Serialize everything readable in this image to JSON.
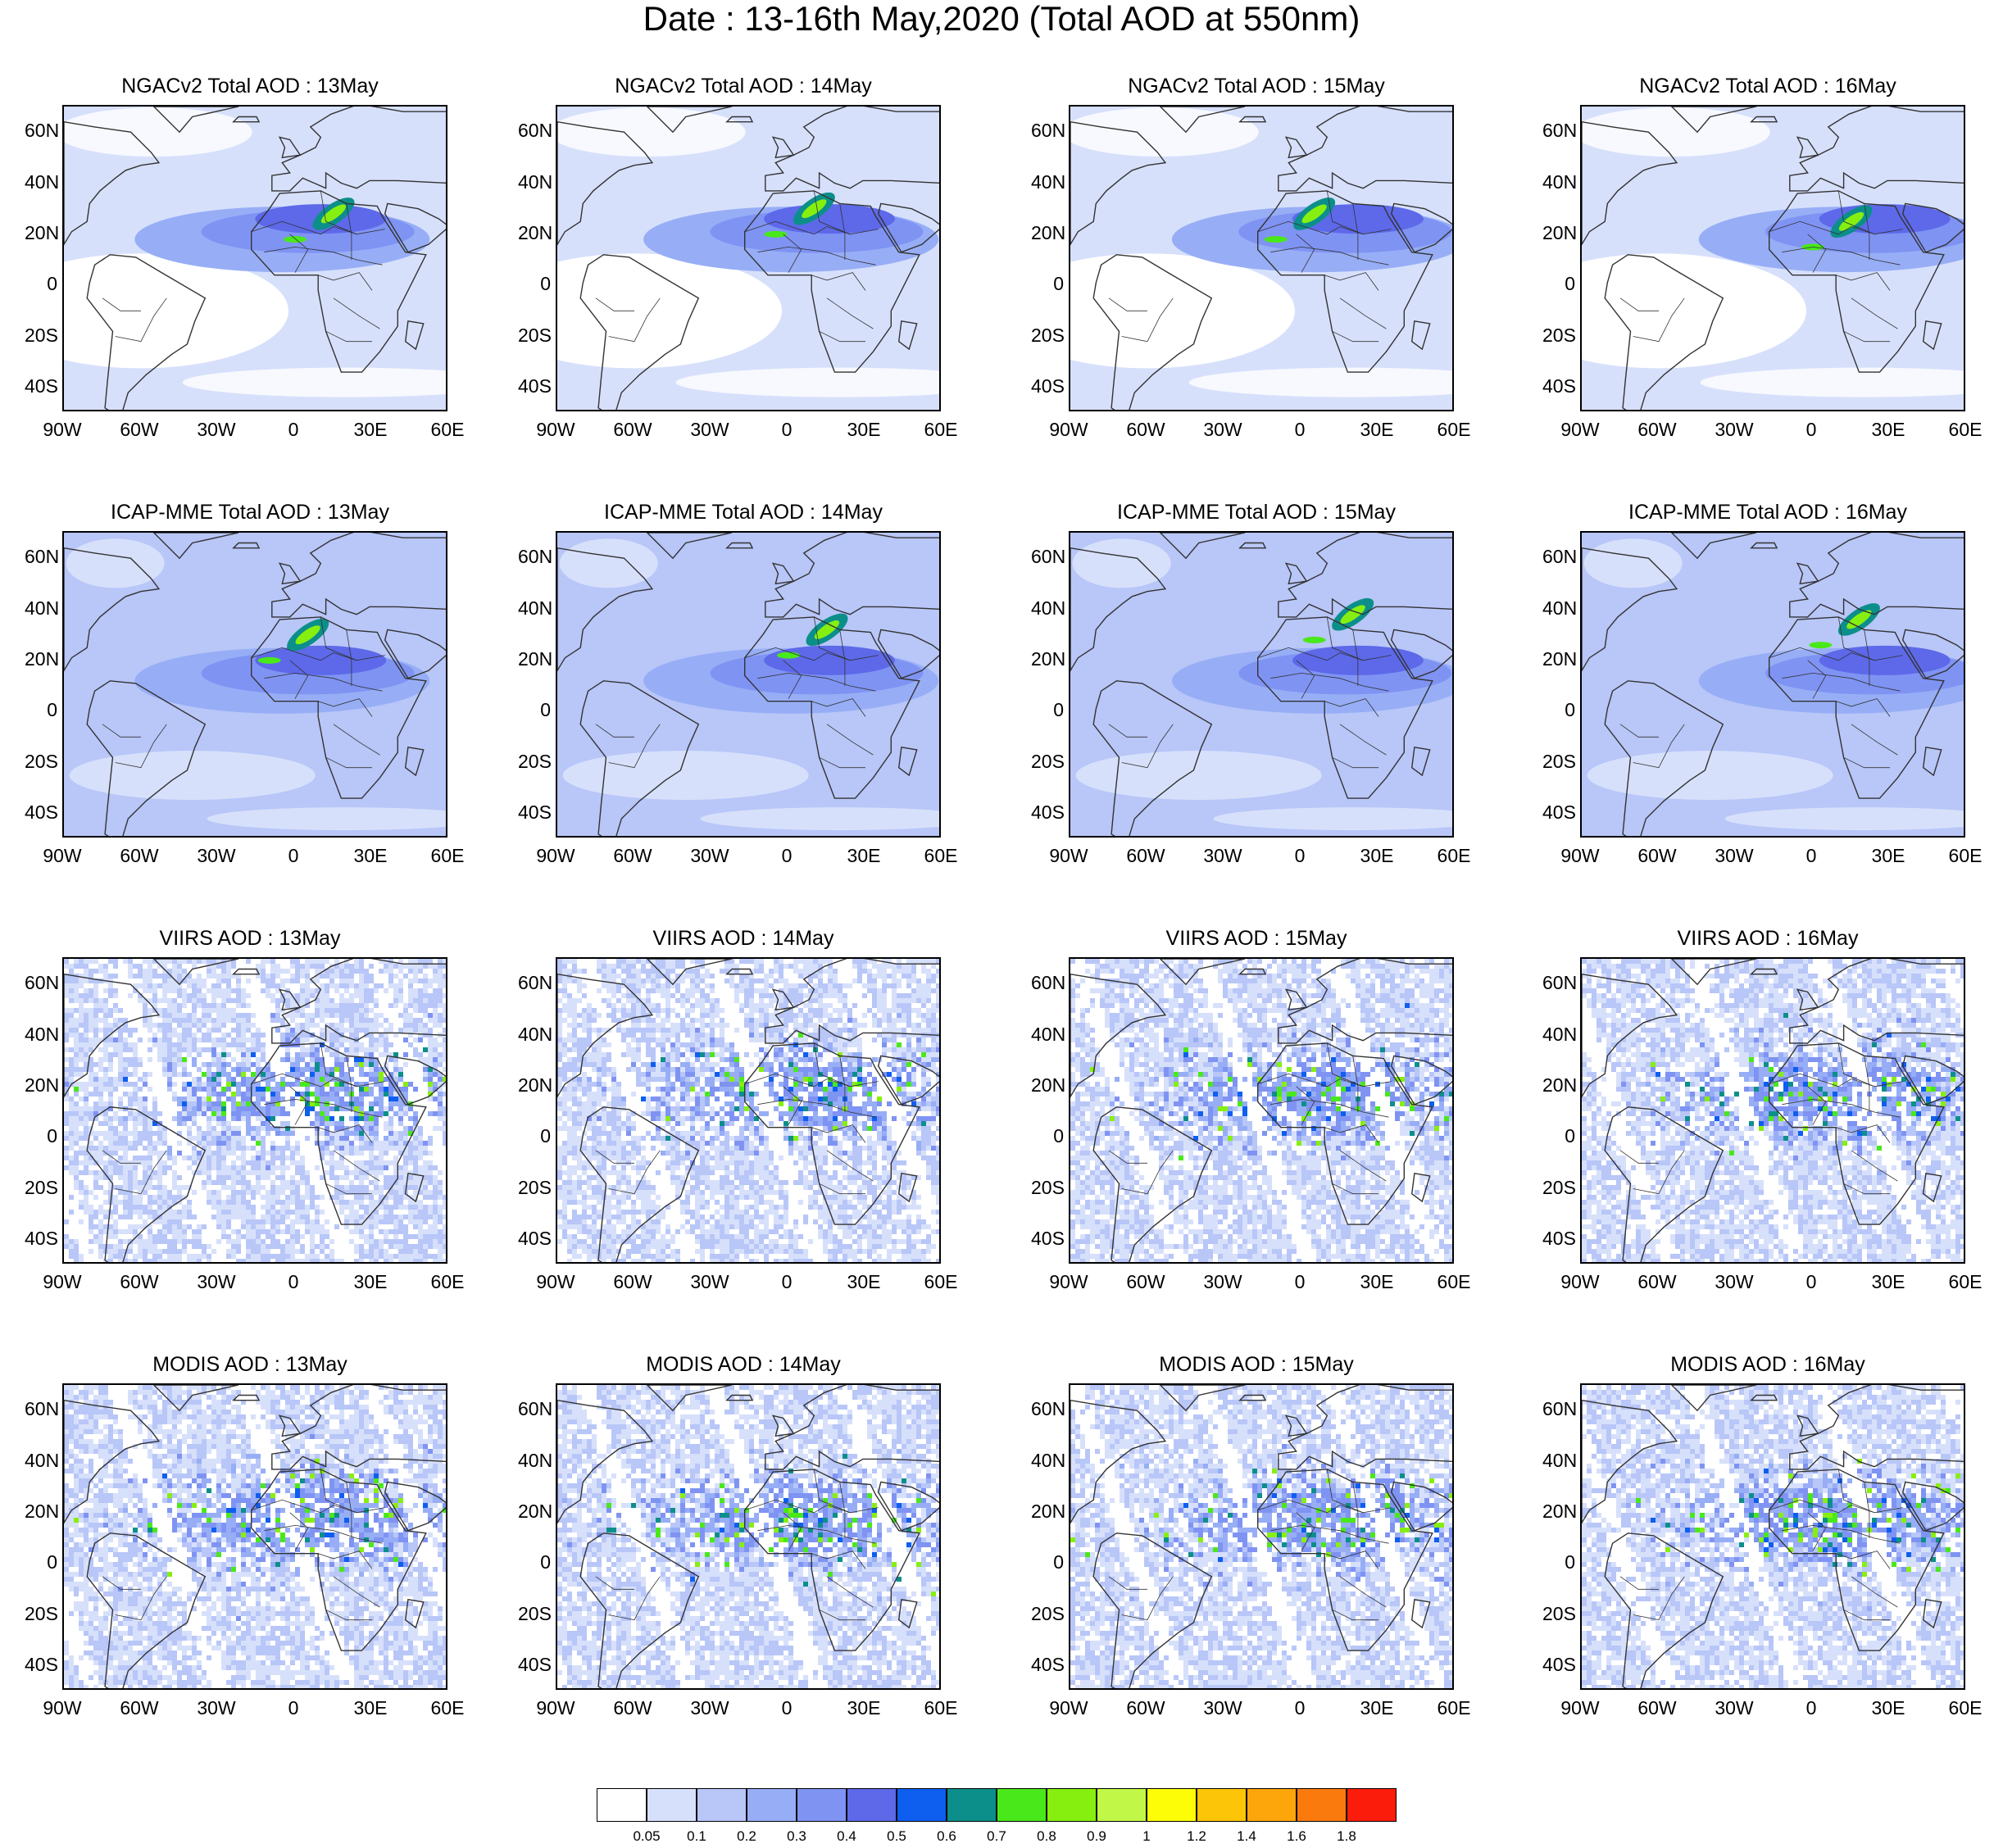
{
  "title": "Date : 13-16th May,2020 (Total AOD at 550nm)",
  "colors": {
    "land_outline": "#333333",
    "aod_palette": [
      "#ffffff",
      "#d7e0fb",
      "#b8c6f8",
      "#97aef6",
      "#7f93f3",
      "#5d69e9",
      "#0e5ef0",
      "#0c8f8a",
      "#49e81b",
      "#86ef10",
      "#c1f746",
      "#fdfd08",
      "#fdc507",
      "#fca60c",
      "#fb7a0e",
      "#fc1c0c"
    ]
  },
  "lat_labels": [
    "60N",
    "40N",
    "20N",
    "0",
    "20S",
    "40S"
  ],
  "lon_labels": [
    "90W",
    "60W",
    "30W",
    "0",
    "30E",
    "60E"
  ],
  "colorbar": {
    "labels": [
      "0.05",
      "0.1",
      "0.2",
      "0.3",
      "0.4",
      "0.5",
      "0.6",
      "0.7",
      "0.8",
      "0.9",
      "1",
      "1.2",
      "1.4",
      "1.6",
      "1.8"
    ]
  },
  "panels": [
    {
      "title": "NGACv2 Total AOD : 13May"
    },
    {
      "title": "NGACv2 Total AOD : 14May"
    },
    {
      "title": "NGACv2 Total AOD : 15May"
    },
    {
      "title": "NGACv2 Total AOD : 16May"
    },
    {
      "title": "ICAP-MME Total AOD : 13May"
    },
    {
      "title": "ICAP-MME Total AOD : 14May"
    },
    {
      "title": "ICAP-MME Total AOD : 15May"
    },
    {
      "title": "ICAP-MME Total AOD : 16May"
    },
    {
      "title": "VIIRS AOD : 13May"
    },
    {
      "title": "VIIRS AOD : 14May"
    },
    {
      "title": "VIIRS AOD : 15May"
    },
    {
      "title": "VIIRS AOD : 16May"
    },
    {
      "title": "MODIS AOD : 13May"
    },
    {
      "title": "MODIS AOD : 14May"
    },
    {
      "title": "MODIS AOD : 15May"
    },
    {
      "title": "MODIS AOD : 16May"
    }
  ]
}
